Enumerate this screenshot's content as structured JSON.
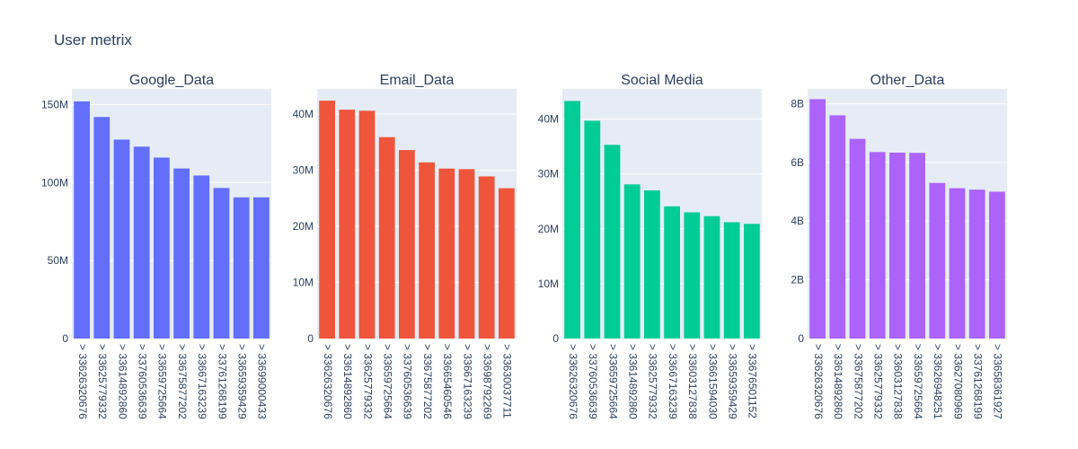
{
  "chart_data": {
    "title": "User metrix",
    "type": "bar",
    "panels": [
      {
        "title": "Google_Data",
        "color": "#636efa",
        "ylim": [
          0,
          160000000
        ],
        "yticks": [
          0,
          50000000,
          100000000,
          150000000
        ],
        "ytick_labels": [
          "0",
          "50M",
          "100M",
          "150M"
        ],
        "categories": [
          "> 33626320676",
          "> 33625779332",
          "> 33614892860",
          "> 33760536639",
          "> 33659725664",
          "> 33675877202",
          "> 33667163239",
          "> 33761268199",
          "> 33659359429",
          "> 33699000433"
        ],
        "values": [
          152000000,
          142000000,
          127500000,
          123000000,
          116000000,
          109000000,
          104500000,
          96500000,
          90500000,
          90500000
        ]
      },
      {
        "title": "Email_Data",
        "color": "#ef553b",
        "ylim": [
          0,
          44500000
        ],
        "yticks": [
          0,
          10000000,
          20000000,
          30000000,
          40000000
        ],
        "ytick_labels": [
          "0",
          "10M",
          "20M",
          "30M",
          "40M"
        ],
        "categories": [
          "> 33626320676",
          "> 33614892860",
          "> 33625779332",
          "> 33659725664",
          "> 33760536639",
          "> 33675877202",
          "> 33665460546",
          "> 33667163239",
          "> 33698792269",
          "> 33630037711"
        ],
        "values": [
          42400000,
          40800000,
          40600000,
          35900000,
          33600000,
          31400000,
          30300000,
          30200000,
          28900000,
          26800000
        ]
      },
      {
        "title": "Social Media",
        "color": "#00cc96",
        "ylim": [
          0,
          45500000
        ],
        "yticks": [
          0,
          10000000,
          20000000,
          30000000,
          40000000
        ],
        "ytick_labels": [
          "0",
          "10M",
          "20M",
          "30M",
          "40M"
        ],
        "categories": [
          "> 33626320676",
          "> 33760536639",
          "> 33659725664",
          "> 33614892860",
          "> 33625779332",
          "> 33667163239",
          "> 33603127838",
          "> 33661594030",
          "> 33659359429",
          "> 33676501152"
        ],
        "values": [
          43300000,
          39700000,
          35300000,
          28100000,
          27000000,
          24100000,
          23000000,
          22300000,
          21200000,
          20900000
        ]
      },
      {
        "title": "Other_Data",
        "color": "#ab63fa",
        "ylim": [
          0,
          8500000000
        ],
        "yticks": [
          0,
          2000000000,
          4000000000,
          6000000000,
          8000000000
        ],
        "ytick_labels": [
          "0",
          "2B",
          "4B",
          "6B",
          "8B"
        ],
        "categories": [
          "> 33626320676",
          "> 33614892860",
          "> 33675877202",
          "> 33625779332",
          "> 33603127838",
          "> 33659725664",
          "> 33626948251",
          "> 33627080969",
          "> 33761268199",
          "> 33658361927"
        ],
        "values": [
          8150000000,
          7600000000,
          6800000000,
          6350000000,
          6330000000,
          6320000000,
          5300000000,
          5120000000,
          5070000000,
          5000000000
        ]
      }
    ]
  }
}
